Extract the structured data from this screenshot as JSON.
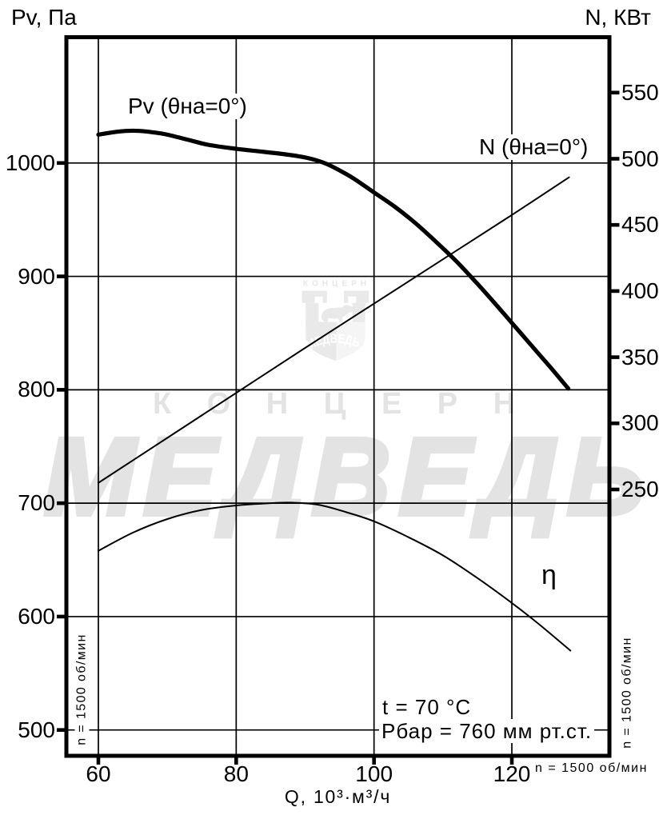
{
  "axis_titles": {
    "left": "Pv, Па",
    "right": "N, КВт",
    "bottom": "Q, 10³·м³/ч"
  },
  "axes": {
    "x": {
      "ticks": [
        "60",
        "80",
        "100",
        "120"
      ],
      "values": [
        60,
        80,
        100,
        120
      ]
    },
    "left": {
      "ticks": [
        "1000",
        "900",
        "800",
        "700",
        "600",
        "500"
      ],
      "values": [
        1000,
        900,
        800,
        700,
        600,
        500
      ]
    },
    "right": {
      "ticks": [
        "550",
        "500",
        "450",
        "400",
        "350",
        "300",
        "250"
      ],
      "values": [
        550,
        500,
        450,
        400,
        350,
        300,
        250
      ]
    }
  },
  "curve_labels": {
    "pv": "Pv (θна=0°)",
    "n": "N (θна=0°)",
    "eta": "η"
  },
  "annotations": {
    "temperature": "t = 70 °C",
    "pressure": "Рбар = 760 мм рт.ст.",
    "speed_left": "n = 1500 об/мин",
    "speed_right": "n = 1500 об/мин",
    "speed_bottom": "n = 1500 об/мин"
  },
  "watermark": {
    "brand_top": "КОНЦЕРН",
    "brand_main": "МЕДВЕДЬ",
    "logo_top_text": "КОНЦЕРН",
    "logo_inner_text": "МЕДВЕДЬ",
    "color": "#e3e3e3",
    "logo_color": "#e9e9e9"
  },
  "chart_data": {
    "type": "line",
    "title": "Fan aerodynamic characteristic at n = 1500 rpm",
    "xlabel": "Q, 10³·м³/ч",
    "ylabel_left": "Pv, Па",
    "ylabel_right": "N, КВт",
    "xlim": [
      55.4,
      134.2
    ],
    "ylim_left": [
      477,
      1111
    ],
    "ylim_right": [
      48,
      592
    ],
    "x_ticks": [
      60,
      80,
      100,
      120
    ],
    "left_ticks": [
      1000,
      900,
      800,
      700,
      600,
      500
    ],
    "right_ticks": [
      550,
      500,
      450,
      400,
      350,
      300,
      250
    ],
    "grid": true,
    "series": [
      {
        "name": "Pv (θна=0°)",
        "axis": "left",
        "units": "Па",
        "style": "thick",
        "points": [
          [
            60,
            1025
          ],
          [
            62,
            1027
          ],
          [
            64,
            1028.3
          ],
          [
            66,
            1028.3
          ],
          [
            68,
            1027
          ],
          [
            70,
            1025
          ],
          [
            73,
            1020.5
          ],
          [
            76,
            1016
          ],
          [
            80,
            1012.5
          ],
          [
            83,
            1010.5
          ],
          [
            86,
            1008.5
          ],
          [
            89,
            1006
          ],
          [
            91,
            1003.5
          ],
          [
            93,
            999.5
          ],
          [
            95,
            993.5
          ],
          [
            97,
            986.5
          ],
          [
            100,
            974
          ],
          [
            103,
            961.5
          ],
          [
            106,
            947
          ],
          [
            109,
            930.5
          ],
          [
            112,
            913
          ],
          [
            115,
            893.5
          ],
          [
            118,
            873
          ],
          [
            121,
            852
          ],
          [
            124,
            831
          ],
          [
            126,
            817
          ],
          [
            128.2,
            801
          ]
        ]
      },
      {
        "name": "N (θна=0°)",
        "axis": "right",
        "units": "КВт",
        "style": "thin",
        "points": [
          [
            60,
            255
          ],
          [
            70,
            289
          ],
          [
            80,
            323
          ],
          [
            90,
            357
          ],
          [
            100,
            390.5
          ],
          [
            110,
            424
          ],
          [
            120,
            457.5
          ],
          [
            128.3,
            486
          ]
        ]
      },
      {
        "name": "η",
        "axis": "left_equivalent",
        "units": "",
        "style": "thin",
        "points": [
          [
            60,
            658
          ],
          [
            65,
            674
          ],
          [
            70,
            686
          ],
          [
            75,
            694
          ],
          [
            80,
            698
          ],
          [
            85,
            700
          ],
          [
            88,
            700.5
          ],
          [
            92,
            698.5
          ],
          [
            96,
            692
          ],
          [
            100,
            684
          ],
          [
            105,
            670
          ],
          [
            110,
            654
          ],
          [
            115,
            634
          ],
          [
            120,
            612
          ],
          [
            124,
            593
          ],
          [
            128.5,
            570
          ]
        ]
      }
    ],
    "conditions": [
      "t = 70 °C",
      "Рбар = 760 мм рт.ст.",
      "n = 1500 об/мин"
    ]
  }
}
